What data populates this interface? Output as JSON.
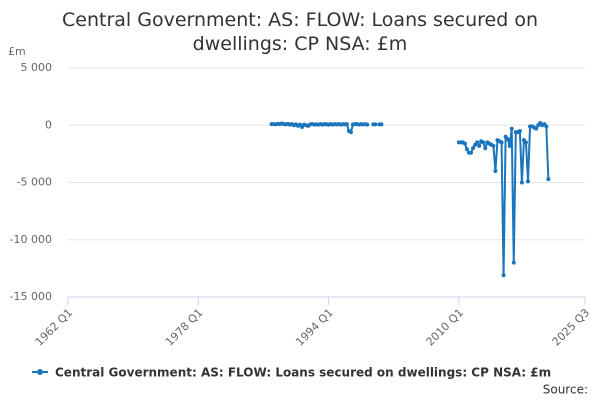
{
  "chart_data": {
    "type": "line",
    "title": "Central Government: AS: FLOW: Loans secured on dwellings: CP NSA: £m",
    "y_label": "£m",
    "source": "Source:",
    "xlim": [
      1962,
      2025.5
    ],
    "xticks": [
      {
        "value": 1962,
        "label": "1962 Q1"
      },
      {
        "value": 1978,
        "label": "1978 Q1"
      },
      {
        "value": 1994,
        "label": "1994 Q1"
      },
      {
        "value": 2010,
        "label": "2010 Q1"
      },
      {
        "value": 2025.5,
        "label": "2025 Q3"
      }
    ],
    "ylim": [
      -15000,
      5000
    ],
    "yticks": [
      {
        "value": -15000,
        "label": "-15 000"
      },
      {
        "value": -10000,
        "label": "-10 000"
      },
      {
        "value": -5000,
        "label": "-5 000"
      },
      0,
      {
        "value": 5000,
        "label": "5 000"
      }
    ],
    "grid": true,
    "x": [
      1987,
      1987.25,
      1987.5,
      1987.75,
      1988,
      1988.25,
      1988.5,
      1988.75,
      1989,
      1989.25,
      1989.5,
      1989.75,
      1990,
      1990.25,
      1990.5,
      1990.75,
      1991,
      1991.25,
      1991.5,
      1991.75,
      1992,
      1992.25,
      1992.5,
      1992.75,
      1993,
      1993.25,
      1993.5,
      1993.75,
      1994,
      1994.25,
      1994.5,
      1994.75,
      1995,
      1995.25,
      1995.5,
      1995.75,
      1996,
      1996.25,
      1996.5,
      1996.75,
      1997,
      1997.25,
      1997.5,
      1997.75,
      1998,
      1998.25,
      1998.5,
      1998.75,
      1999,
      1999.5,
      1999.75,
      2000,
      2000.25,
      2000.5,
      2005,
      2010,
      2010.25,
      2010.5,
      2010.75,
      2011,
      2011.25,
      2011.5,
      2011.75,
      2012,
      2012.25,
      2012.5,
      2012.75,
      2013,
      2013.25,
      2013.5,
      2013.75,
      2014,
      2014.25,
      2014.5,
      2014.75,
      2015,
      2015.25,
      2015.5,
      2015.75,
      2016,
      2016.25,
      2016.5,
      2016.75,
      2017,
      2017.25,
      2017.5,
      2017.75,
      2018,
      2018.25,
      2018.5,
      2018.75,
      2019,
      2019.25,
      2019.5,
      2019.75,
      2020,
      2020.25,
      2020.5,
      2020.75,
      2021
    ],
    "series": [
      {
        "name": "Central Government: AS: FLOW: Loans secured on dwellings: CP NSA: £m",
        "color": "#1a75bc",
        "values": [
          100,
          100,
          80,
          120,
          100,
          150,
          100,
          80,
          120,
          60,
          100,
          0,
          80,
          -50,
          50,
          -150,
          50,
          0,
          -50,
          80,
          100,
          50,
          80,
          50,
          100,
          50,
          100,
          80,
          50,
          100,
          50,
          100,
          80,
          100,
          50,
          100,
          80,
          100,
          -500,
          -600,
          80,
          100,
          100,
          50,
          100,
          80,
          100,
          50,
          null,
          80,
          80,
          null,
          80,
          80,
          null,
          -1500,
          -1500,
          -1500,
          -1600,
          -2100,
          -2400,
          -2400,
          -2000,
          -1700,
          -1500,
          -1800,
          -1400,
          -1500,
          -2000,
          -1500,
          -1600,
          -1700,
          -1800,
          -4000,
          -1300,
          -1400,
          -1500,
          -13100,
          -1000,
          -1200,
          -1800,
          -300,
          -12000,
          -600,
          -600,
          -500,
          -5000,
          -1300,
          -1500,
          -4900,
          -100,
          -100,
          -200,
          -300,
          0,
          200,
          0,
          100,
          -100,
          -4700
        ]
      }
    ]
  }
}
